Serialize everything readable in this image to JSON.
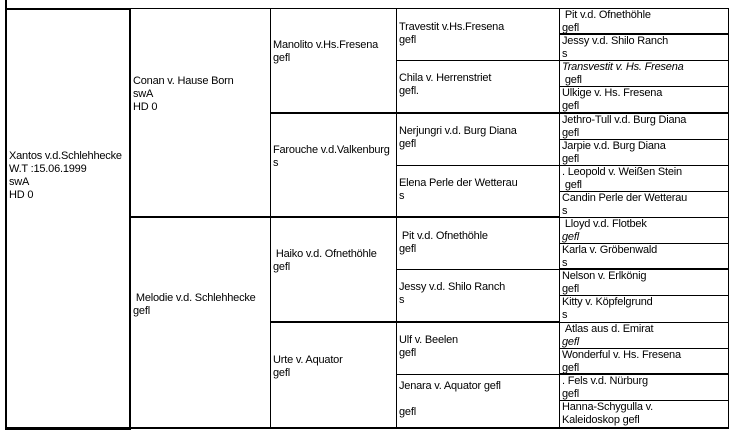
{
  "subject": {
    "text": "Xantos v.d.Schlehhecke\nW.T :15.06.1999\nswA\nHD 0"
  },
  "gen1": [
    {
      "text": "Conan v. Hause Born\nswA\nHD 0"
    },
    {
      "text": " Melodie v.d. Schlehhecke\ngefl"
    }
  ],
  "gen2": [
    {
      "text": "Manolito v.Hs.Fresena\ngefl"
    },
    {
      "text": "Farouche v.d.Valkenburg\ns"
    },
    {
      "text": " Haiko v.d. Ofnethöhle\ngefl"
    },
    {
      "text": "Urte v. Aquator\ngefl"
    }
  ],
  "gen3": [
    {
      "text": "Travestit v.Hs.Fresena\ngefl"
    },
    {
      "text": "Chila v. Herrenstriet\ngefl."
    },
    {
      "text": "Nerjungri v.d. Burg Diana\ngefl"
    },
    {
      "text": "Elena Perle der Wetterau\ns"
    },
    {
      "text": " Pit v.d. Ofnethöhle\ngefl"
    },
    {
      "text": "Jessy v.d. Shilo Ranch\ns"
    },
    {
      "text": "Ulf v. Beelen\ngefl"
    },
    {
      "text": "Jenara v. Aquator gefl\n\ngefl"
    }
  ],
  "gen4": [
    {
      "line1": " Pit v.d. Ofnethöhle",
      "line2": "gefl"
    },
    {
      "line1": "Jessy v.d. Shilo Ranch",
      "line2": "s"
    },
    {
      "line1": "Transvestit v. Hs. Fresena",
      "line2": " gefl"
    },
    {
      "line1": "Ulkige v. Hs. Fresena",
      "line2": "gefl"
    },
    {
      "line1": "Jethro-Tull v.d. Burg Diana",
      "line2": "gefl"
    },
    {
      "line1": "Jarpie v.d. Burg Diana",
      "line2": "gefl"
    },
    {
      "line1": ". Leopold v. Weißen Stein",
      "line2": " gefl"
    },
    {
      "line1": "Candin Perle der Wetterau",
      "line2": "s"
    },
    {
      "line1": " Lloyd v.d. Flotbek",
      "line2": "gefl"
    },
    {
      "line1": "Karla v. Gröbenwald",
      "line2": "s"
    },
    {
      "line1": "Nelson v. Erlkönig",
      "line2": "gefl"
    },
    {
      "line1": "Kitty v. Köpfelgrund",
      "line2": "s"
    },
    {
      "line1": " Atlas aus d. Emirat",
      "line2": "gefl"
    },
    {
      "line1": "Wonderful v. Hs. Fresena",
      "line2": "gefl"
    },
    {
      "line1": ". Fels v.d. Nürburg",
      "line2": "gefl"
    },
    {
      "line1": "Hanna-Schygulla v.",
      "line2": "Kaleidoskop gefl"
    }
  ]
}
